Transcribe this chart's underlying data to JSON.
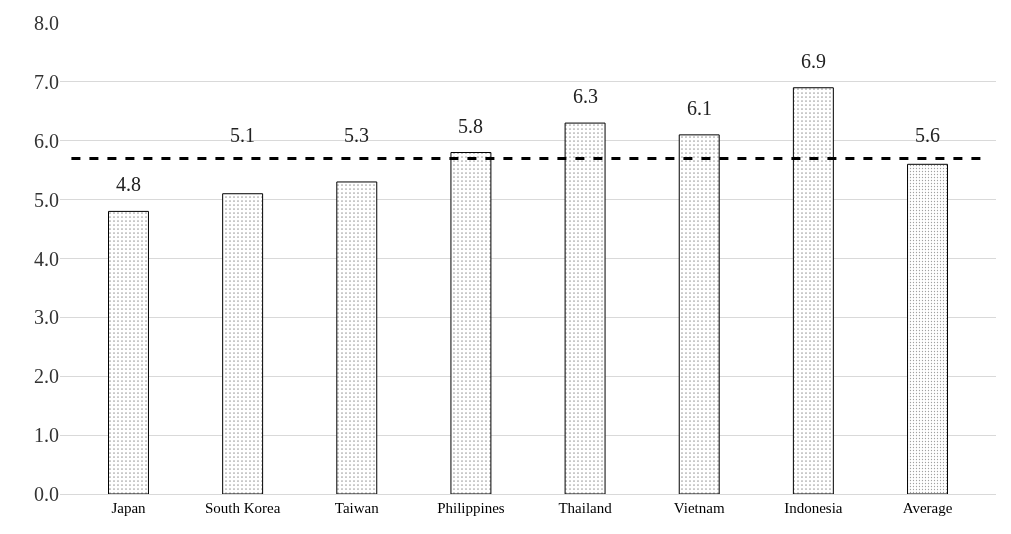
{
  "chart_data": {
    "type": "bar",
    "categories": [
      "Japan",
      "South Korea",
      "Taiwan",
      "Philippines",
      "Thailand",
      "Vietnam",
      "Indonesia",
      "Average"
    ],
    "values": [
      4.8,
      5.1,
      5.3,
      5.8,
      6.3,
      6.1,
      6.9,
      5.6
    ],
    "ylim": [
      0,
      8
    ],
    "yticks": [
      {
        "value": 0,
        "label": "0.0"
      },
      {
        "value": 1,
        "label": "1.0"
      },
      {
        "value": 2,
        "label": "2.0"
      },
      {
        "value": 3,
        "label": "3.0"
      },
      {
        "value": 4,
        "label": "4.0"
      },
      {
        "value": 5,
        "label": "5.0"
      },
      {
        "value": 6,
        "label": "6.0"
      },
      {
        "value": 7,
        "label": "7.0"
      },
      {
        "value": 8,
        "label": "8.0"
      }
    ],
    "grid": "y",
    "data_labels": true,
    "ref_lines": [
      {
        "axis": "y",
        "value": 5.7,
        "color": "#000000",
        "line_style": "dashed"
      }
    ]
  }
}
